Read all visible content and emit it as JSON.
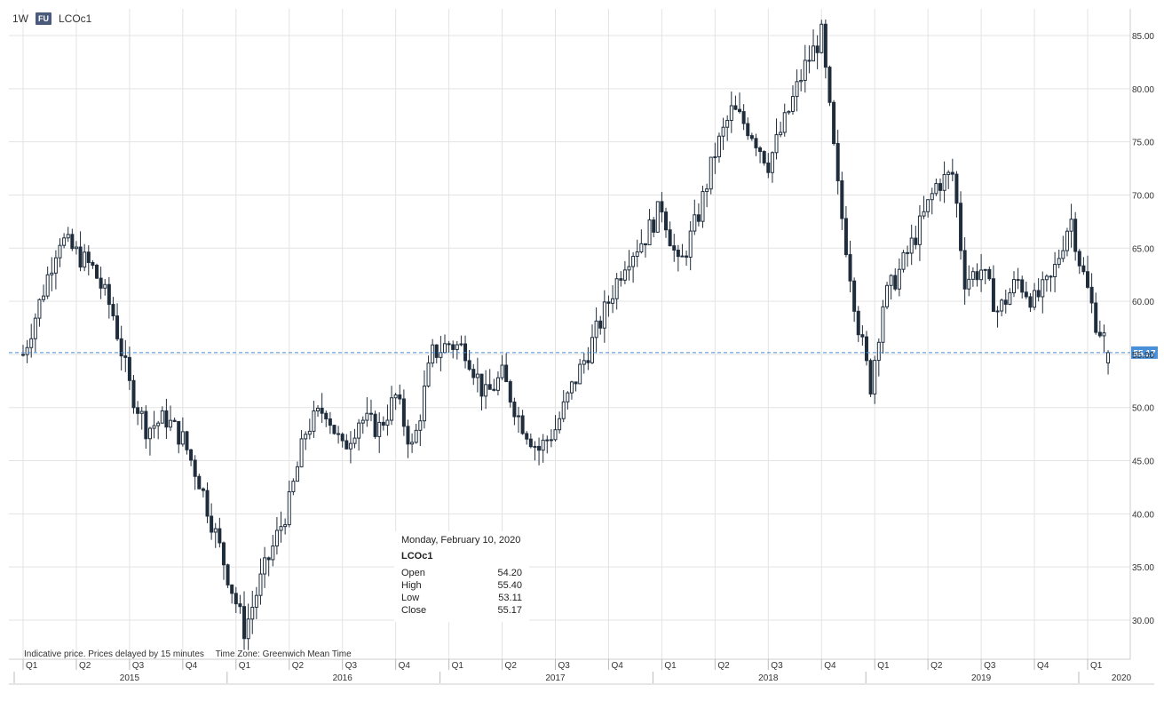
{
  "toolbar": {
    "interval": "1W",
    "badge": "FU",
    "symbol": "LCOc1"
  },
  "price_label": "55.17",
  "tooltip": {
    "date": "Monday, February 10, 2020",
    "symbol": "LCOc1",
    "rows": [
      {
        "label": "Open",
        "value": "54.20"
      },
      {
        "label": "High",
        "value": "55.40"
      },
      {
        "label": "Low",
        "value": "53.11"
      },
      {
        "label": "Close",
        "value": "55.17"
      }
    ]
  },
  "footer": {
    "note": "Indicative price. Prices delayed by 15 minutes",
    "timezone": "Time Zone: Greenwich Mean Time"
  },
  "colors": {
    "candle": "#1f2d3d",
    "grid": "#e3e3e3",
    "price_line": "#4a90d9",
    "price_tag": "#4a90d9"
  },
  "chart_data": {
    "type": "candlestick",
    "symbol": "LCOc1",
    "interval": "1W",
    "ylim": [
      27,
      87
    ],
    "yticks": [
      "30.00",
      "35.00",
      "40.00",
      "45.00",
      "50.00",
      "55.00",
      "60.00",
      "65.00",
      "70.00",
      "75.00",
      "80.00",
      "85.00"
    ],
    "last_price": 55.17,
    "x_quarters": [
      {
        "label": "Q1",
        "x": 2015.0
      },
      {
        "label": "Q2",
        "x": 2015.25
      },
      {
        "label": "Q3",
        "x": 2015.5
      },
      {
        "label": "Q4",
        "x": 2015.75
      },
      {
        "label": "Q1",
        "x": 2016.0
      },
      {
        "label": "Q2",
        "x": 2016.25
      },
      {
        "label": "Q3",
        "x": 2016.5
      },
      {
        "label": "Q4",
        "x": 2016.75
      },
      {
        "label": "Q1",
        "x": 2017.0
      },
      {
        "label": "Q2",
        "x": 2017.25
      },
      {
        "label": "Q3",
        "x": 2017.5
      },
      {
        "label": "Q4",
        "x": 2017.75
      },
      {
        "label": "Q1",
        "x": 2018.0
      },
      {
        "label": "Q2",
        "x": 2018.25
      },
      {
        "label": "Q3",
        "x": 2018.5
      },
      {
        "label": "Q4",
        "x": 2018.75
      },
      {
        "label": "Q1",
        "x": 2019.0
      },
      {
        "label": "Q2",
        "x": 2019.25
      },
      {
        "label": "Q3",
        "x": 2019.5
      },
      {
        "label": "Q4",
        "x": 2019.75
      },
      {
        "label": "Q1",
        "x": 2020.0
      }
    ],
    "x_years": [
      {
        "label": "2015",
        "x": 2015.0
      },
      {
        "label": "2016",
        "x": 2016.0
      },
      {
        "label": "2017",
        "x": 2017.0
      },
      {
        "label": "2018",
        "x": 2018.0
      },
      {
        "label": "2019",
        "x": 2019.0
      },
      {
        "label": "2020",
        "x": 2020.0
      }
    ],
    "anchors": [
      [
        2015.0,
        55.0
      ],
      [
        2015.08,
        60.0
      ],
      [
        2015.17,
        66.0
      ],
      [
        2015.33,
        63.0
      ],
      [
        2015.42,
        59.0
      ],
      [
        2015.5,
        52.0
      ],
      [
        2015.58,
        48.0
      ],
      [
        2015.67,
        49.0
      ],
      [
        2015.75,
        47.0
      ],
      [
        2015.83,
        43.0
      ],
      [
        2015.92,
        37.0
      ],
      [
        2016.04,
        29.0
      ],
      [
        2016.12,
        34.0
      ],
      [
        2016.25,
        41.0
      ],
      [
        2016.33,
        48.0
      ],
      [
        2016.42,
        50.0
      ],
      [
        2016.5,
        46.0
      ],
      [
        2016.58,
        49.0
      ],
      [
        2016.67,
        48.0
      ],
      [
        2016.75,
        51.0
      ],
      [
        2016.83,
        46.0
      ],
      [
        2016.92,
        55.0
      ],
      [
        2017.0,
        56.0
      ],
      [
        2017.08,
        55.5
      ],
      [
        2017.17,
        51.0
      ],
      [
        2017.25,
        53.0
      ],
      [
        2017.33,
        49.0
      ],
      [
        2017.42,
        46.0
      ],
      [
        2017.5,
        48.0
      ],
      [
        2017.58,
        52.0
      ],
      [
        2017.67,
        56.0
      ],
      [
        2017.75,
        60.0
      ],
      [
        2017.83,
        64.0
      ],
      [
        2017.92,
        66.0
      ],
      [
        2018.0,
        69.0
      ],
      [
        2018.08,
        63.0
      ],
      [
        2018.17,
        68.0
      ],
      [
        2018.25,
        74.0
      ],
      [
        2018.33,
        78.0
      ],
      [
        2018.42,
        76.0
      ],
      [
        2018.5,
        73.0
      ],
      [
        2018.58,
        77.0
      ],
      [
        2018.67,
        82.0
      ],
      [
        2018.75,
        85.0
      ],
      [
        2018.83,
        70.0
      ],
      [
        2018.92,
        58.0
      ],
      [
        2018.98,
        52.0
      ],
      [
        2019.04,
        60.0
      ],
      [
        2019.12,
        63.0
      ],
      [
        2019.21,
        67.0
      ],
      [
        2019.29,
        71.0
      ],
      [
        2019.37,
        72.0
      ],
      [
        2019.42,
        62.0
      ],
      [
        2019.5,
        63.0
      ],
      [
        2019.58,
        59.0
      ],
      [
        2019.67,
        62.0
      ],
      [
        2019.75,
        60.0
      ],
      [
        2019.83,
        62.0
      ],
      [
        2019.92,
        68.0
      ],
      [
        2019.96,
        64.0
      ],
      [
        2020.04,
        58.0
      ],
      [
        2020.11,
        55.17
      ]
    ],
    "last_candle": {
      "date": "Monday, February 10, 2020",
      "open": 54.2,
      "high": 55.4,
      "low": 53.11,
      "close": 55.17
    }
  }
}
